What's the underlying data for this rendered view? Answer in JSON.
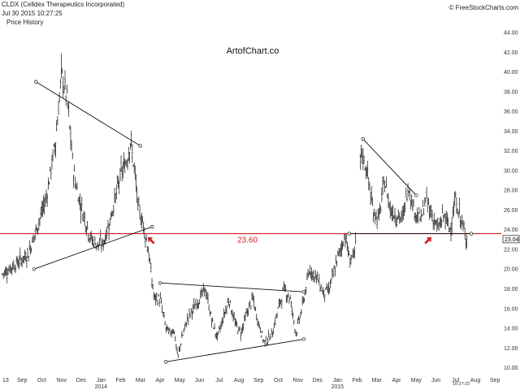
{
  "header": {
    "title": "CLDX (Celldex Therapeutics Incorporated)",
    "timestamp": "Jul 30 2015 10:27:25",
    "subtitle": "Price History",
    "credit": "© FreeStockCharts.com",
    "watermark": "ArtofChart.co"
  },
  "chart_data": {
    "type": "ohlc",
    "ylim": [
      9.8,
      44.0
    ],
    "y_ticks": [
      10,
      12,
      14,
      16,
      18,
      20,
      22,
      24,
      26,
      28,
      30,
      32,
      34,
      36,
      38,
      40,
      42,
      44
    ],
    "y_tick_labels": [
      "10.00",
      "12.00",
      "14.00",
      "16.00",
      "18.00",
      "20.00",
      "22.00",
      "24.00",
      "26.00",
      "28.00",
      "30.00",
      "32.00",
      "34.00",
      "36.00",
      "38.00",
      "40.00",
      "42.00",
      "44.00"
    ],
    "x_ticks": [
      {
        "label": "13",
        "year": ""
      },
      {
        "label": "Sep",
        "year": ""
      },
      {
        "label": "Oct",
        "year": ""
      },
      {
        "label": "Nov",
        "year": ""
      },
      {
        "label": "Dec",
        "year": ""
      },
      {
        "label": "Jan",
        "year": "2014"
      },
      {
        "label": "Feb",
        "year": ""
      },
      {
        "label": "Mar",
        "year": ""
      },
      {
        "label": "Apr",
        "year": ""
      },
      {
        "label": "May",
        "year": ""
      },
      {
        "label": "Jun",
        "year": ""
      },
      {
        "label": "Jul",
        "year": ""
      },
      {
        "label": "Aug",
        "year": ""
      },
      {
        "label": "Sep",
        "year": ""
      },
      {
        "label": "Oct",
        "year": ""
      },
      {
        "label": "Nov",
        "year": ""
      },
      {
        "label": "Dec",
        "year": ""
      },
      {
        "label": "Jan",
        "year": "2015"
      },
      {
        "label": "Feb",
        "year": ""
      },
      {
        "label": "Mar",
        "year": ""
      },
      {
        "label": "Apr",
        "year": ""
      },
      {
        "label": "May",
        "year": ""
      },
      {
        "label": "Jun",
        "year": ""
      },
      {
        "label": "Jul",
        "year": ""
      },
      {
        "label": "Aug",
        "year": ""
      },
      {
        "label": "Sep",
        "year": ""
      }
    ],
    "last_price": "23.04",
    "cursor_time": "10:27:25",
    "support_level": {
      "value": 23.6,
      "label": "23.60",
      "color": "#d42020"
    },
    "price_path": [
      [
        0,
        19.5
      ],
      [
        1.3,
        21.5
      ],
      [
        1.8,
        24.5
      ],
      [
        2.2,
        27
      ],
      [
        2.7,
        33
      ],
      [
        3.0,
        40
      ],
      [
        3.3,
        37
      ],
      [
        3.6,
        30
      ],
      [
        3.9,
        27
      ],
      [
        4.2,
        25
      ],
      [
        4.5,
        23
      ],
      [
        4.8,
        22.5
      ],
      [
        5.1,
        22.5
      ],
      [
        5.4,
        24.5
      ],
      [
        5.7,
        27
      ],
      [
        6.0,
        29.5
      ],
      [
        6.3,
        31
      ],
      [
        6.5,
        33
      ],
      [
        6.7,
        30
      ],
      [
        6.9,
        26
      ],
      [
        7.1,
        25
      ],
      [
        7.4,
        22
      ],
      [
        7.7,
        17
      ],
      [
        8.0,
        17
      ],
      [
        8.3,
        14
      ],
      [
        8.5,
        13.5
      ],
      [
        8.7,
        14
      ],
      [
        8.9,
        11
      ],
      [
        9.1,
        13
      ],
      [
        9.4,
        15
      ],
      [
        9.7,
        16
      ],
      [
        10.0,
        17
      ],
      [
        10.3,
        18
      ],
      [
        10.6,
        15
      ],
      [
        10.9,
        13
      ],
      [
        11.2,
        15
      ],
      [
        11.5,
        17
      ],
      [
        11.8,
        14.5
      ],
      [
        12.1,
        13.5
      ],
      [
        12.4,
        15.5
      ],
      [
        12.7,
        17
      ],
      [
        13.0,
        14.5
      ],
      [
        13.3,
        12.5
      ],
      [
        13.7,
        13.5
      ],
      [
        14.0,
        16
      ],
      [
        14.3,
        18
      ],
      [
        14.6,
        17
      ],
      [
        14.9,
        13.5
      ],
      [
        15.2,
        16
      ],
      [
        15.6,
        20
      ],
      [
        16.0,
        19
      ],
      [
        16.3,
        17.5
      ],
      [
        16.6,
        18
      ],
      [
        17.0,
        21
      ],
      [
        17.4,
        23.5
      ],
      [
        17.6,
        21
      ],
      [
        17.9,
        21.5
      ],
      [
        18.2,
        32
      ],
      [
        18.5,
        30
      ],
      [
        18.8,
        26
      ],
      [
        19.1,
        25
      ],
      [
        19.4,
        29
      ],
      [
        19.7,
        26
      ],
      [
        20.0,
        25.5
      ],
      [
        20.3,
        25
      ],
      [
        20.6,
        28.5
      ],
      [
        20.9,
        26
      ],
      [
        21.2,
        25
      ],
      [
        21.5,
        27
      ],
      [
        21.8,
        25.5
      ],
      [
        22.1,
        24
      ],
      [
        22.4,
        25.5
      ],
      [
        22.7,
        24
      ],
      [
        23.0,
        27
      ],
      [
        23.4,
        24
      ],
      [
        23.6,
        23.04
      ]
    ],
    "trendlines": [
      {
        "from": [
          1.7,
          39.0
        ],
        "to": [
          7.0,
          32.5
        ],
        "color": "#111111"
      },
      {
        "from": [
          1.6,
          20.0
        ],
        "to": [
          7.6,
          24.3
        ],
        "color": "#111111"
      },
      {
        "from": [
          8.0,
          18.6
        ],
        "to": [
          15.3,
          17.7
        ],
        "color": "#111111"
      },
      {
        "from": [
          8.3,
          10.6
        ],
        "to": [
          15.3,
          12.9
        ],
        "color": "#111111"
      },
      {
        "from": [
          18.3,
          33.2
        ],
        "to": [
          21.0,
          27.5
        ],
        "color": "#111111"
      },
      {
        "from": [
          17.6,
          23.6
        ],
        "to": [
          23.8,
          23.6
        ],
        "color": "#111111"
      }
    ],
    "arrows": [
      {
        "at": [
          7.55,
          22.9
        ],
        "dir": "nw",
        "color": "#d42020"
      },
      {
        "at": [
          21.6,
          22.9
        ],
        "dir": "ne",
        "color": "#d42020"
      }
    ]
  }
}
